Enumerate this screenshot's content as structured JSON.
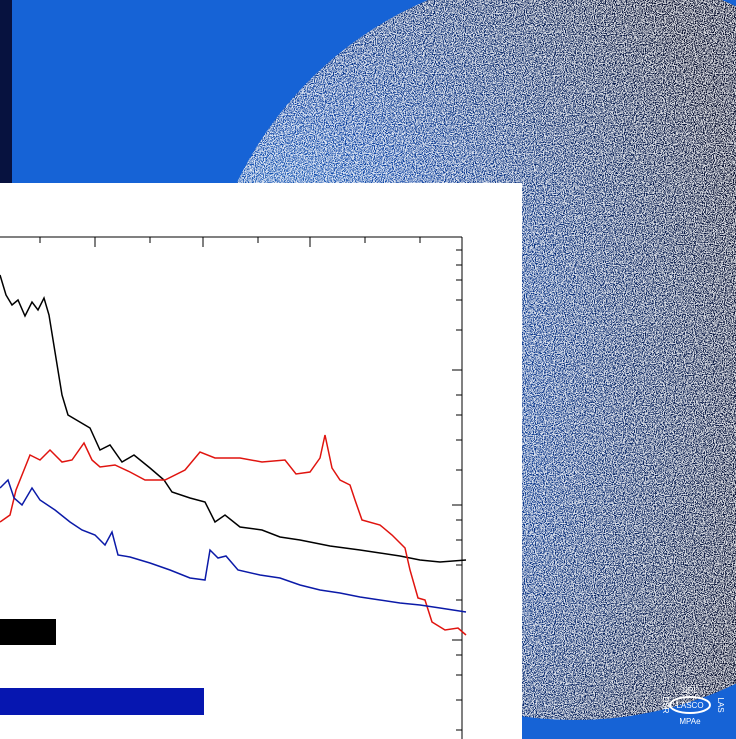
{
  "logo": {
    "top": "NRL",
    "center": "LASCO",
    "bottom": "MPAe",
    "left": "DSR",
    "right": "LAS"
  }
}
